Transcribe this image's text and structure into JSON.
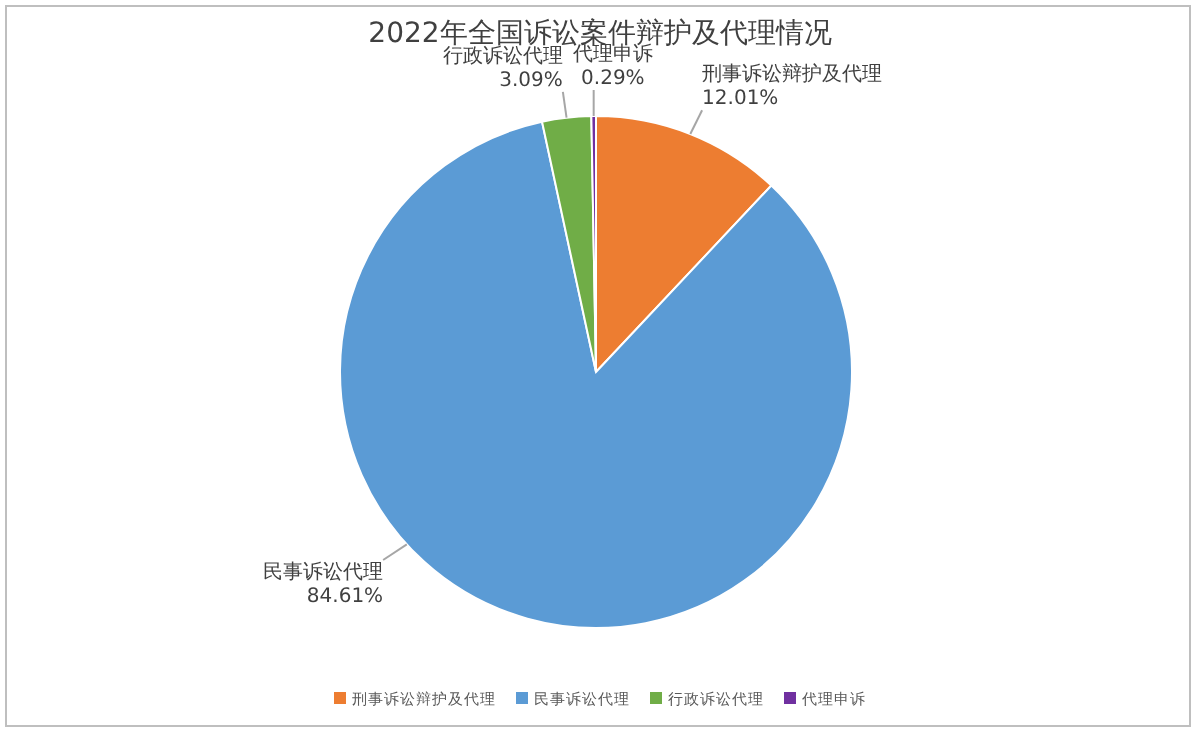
{
  "chart_data": {
    "type": "pie",
    "title": "2022年全国诉讼案件辩护及代理情况",
    "categories": [
      "刑事诉讼辩护及代理",
      "民事诉讼代理",
      "行政诉讼代理",
      "代理申诉"
    ],
    "values": [
      12.01,
      84.61,
      3.09,
      0.29
    ],
    "colors": [
      "#ed7d31",
      "#5b9bd5",
      "#70ad47",
      "#7030a0"
    ],
    "value_labels": [
      "12.01%",
      "84.61%",
      "3.09%",
      "0.29%"
    ],
    "legend": "bottom"
  }
}
